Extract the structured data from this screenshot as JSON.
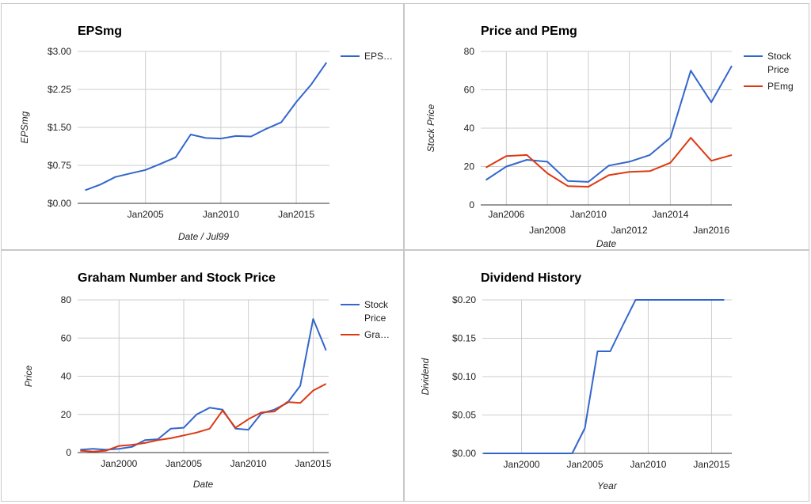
{
  "colors": {
    "blue": "#3366cc",
    "red": "#dc3912"
  },
  "chart_data": [
    {
      "id": "eps",
      "type": "line",
      "title": "EPSmg",
      "xlabel": "Date / Jul99",
      "ylabel": "EPSmg",
      "x_ticks": [
        "Jan2005",
        "Jan2010",
        "Jan2015"
      ],
      "y_ticks": [
        "$0.00",
        "$0.75",
        "$1.50",
        "$2.25",
        "$3.00"
      ],
      "ylim": [
        0,
        3
      ],
      "series": [
        {
          "name": "EPS…",
          "color": "#3366cc",
          "x": [
            2001.0,
            2002.0,
            2003.0,
            2004.0,
            2005.0,
            2006.0,
            2007.0,
            2008.0,
            2009.0,
            2010.0,
            2011.0,
            2012.0,
            2013.0,
            2014.0,
            2015.0,
            2016.0,
            2017.0
          ],
          "y": [
            0.26,
            0.37,
            0.52,
            0.59,
            0.66,
            0.78,
            0.91,
            1.36,
            1.29,
            1.28,
            1.33,
            1.32,
            1.47,
            1.6,
            2.0,
            2.35,
            2.78
          ]
        }
      ],
      "grid": true,
      "legend": "right"
    },
    {
      "id": "pe",
      "type": "line",
      "title": "Price and PEmg",
      "xlabel": "Date",
      "ylabel": "Stock Price",
      "x_ticks": [
        "Jan2006",
        "Jan2008",
        "Jan2010",
        "Jan2012",
        "Jan2014",
        "Jan2016"
      ],
      "y_ticks": [
        "0",
        "20",
        "40",
        "60",
        "80"
      ],
      "ylim": [
        0,
        80
      ],
      "series": [
        {
          "name": "Stock Price",
          "color": "#3366cc",
          "x": [
            2005.0,
            2006.0,
            2007.0,
            2008.0,
            2009.0,
            2010.0,
            2011.0,
            2012.0,
            2013.0,
            2014.0,
            2015.0,
            2016.0,
            2017.0
          ],
          "y": [
            13,
            20,
            23.5,
            22.5,
            12.5,
            12,
            20.5,
            22.5,
            26,
            35,
            70,
            53.5,
            72.5
          ]
        },
        {
          "name": "PEmg",
          "color": "#dc3912",
          "x": [
            2005.0,
            2006.0,
            2007.0,
            2008.0,
            2009.0,
            2010.0,
            2011.0,
            2012.0,
            2013.0,
            2014.0,
            2015.0,
            2016.0,
            2017.0
          ],
          "y": [
            19.5,
            25.5,
            26,
            16.5,
            9.8,
            9.5,
            15.5,
            17.2,
            17.6,
            22,
            35,
            23,
            26
          ]
        }
      ],
      "grid": true,
      "legend": "right"
    },
    {
      "id": "graham",
      "type": "line",
      "title": "Graham Number and Stock Price",
      "xlabel": "Date",
      "ylabel": "Price",
      "x_ticks": [
        "Jan2000",
        "Jan2005",
        "Jan2010",
        "Jan2015"
      ],
      "y_ticks": [
        "0",
        "20",
        "40",
        "60",
        "80"
      ],
      "ylim": [
        0,
        80
      ],
      "series": [
        {
          "name": "Stock Price",
          "color": "#3366cc",
          "x": [
            1997.0,
            1998.0,
            1999.0,
            2000.0,
            2001.0,
            2002.0,
            2003.0,
            2004.0,
            2005.0,
            2006.0,
            2007.0,
            2008.0,
            2009.0,
            2010.0,
            2011.0,
            2012.0,
            2013.0,
            2014.0,
            2015.0,
            2016.0
          ],
          "y": [
            1.5,
            2,
            1.5,
            2,
            3,
            6.5,
            7,
            12.5,
            13,
            20,
            23.5,
            22.5,
            12.5,
            12,
            20.5,
            22.5,
            26,
            35,
            70,
            53.5
          ]
        },
        {
          "name": "Gra…",
          "color": "#dc3912",
          "x": [
            1997.0,
            1998.0,
            1999.0,
            2000.0,
            2001.0,
            2002.0,
            2003.0,
            2004.0,
            2005.0,
            2006.0,
            2007.0,
            2008.0,
            2009.0,
            2010.0,
            2011.0,
            2012.0,
            2013.0,
            2014.0,
            2015.0,
            2016.0
          ],
          "y": [
            1,
            0.5,
            1,
            3.5,
            4,
            5,
            6.5,
            7.5,
            9,
            10.5,
            12.5,
            22,
            13,
            17.5,
            21,
            21.5,
            26.5,
            26,
            32.5,
            36
          ]
        }
      ],
      "grid": true,
      "legend": "right"
    },
    {
      "id": "dividend",
      "type": "line",
      "title": "Dividend History",
      "xlabel": "Year",
      "ylabel": "Dividend",
      "x_ticks": [
        "Jan2000",
        "Jan2005",
        "Jan2010",
        "Jan2015"
      ],
      "y_ticks": [
        "$0.00",
        "$0.05",
        "$0.10",
        "$0.15",
        "$0.20"
      ],
      "ylim": [
        0,
        0.2
      ],
      "series": [
        {
          "name": "Dividend",
          "color": "#3366cc",
          "x": [
            1997.0,
            1998.0,
            1999.0,
            2000.0,
            2001.0,
            2002.0,
            2003.0,
            2004.0,
            2005.0,
            2006.0,
            2007.0,
            2008.0,
            2009.0,
            2010.0,
            2011.0,
            2012.0,
            2013.0,
            2014.0,
            2015.0,
            2016.0
          ],
          "y": [
            0,
            0,
            0,
            0,
            0,
            0,
            0,
            0,
            0.033,
            0.133,
            0.133,
            0.167,
            0.2,
            0.2,
            0.2,
            0.2,
            0.2,
            0.2,
            0.2,
            0.2
          ]
        }
      ],
      "grid": true,
      "legend": "none"
    }
  ]
}
